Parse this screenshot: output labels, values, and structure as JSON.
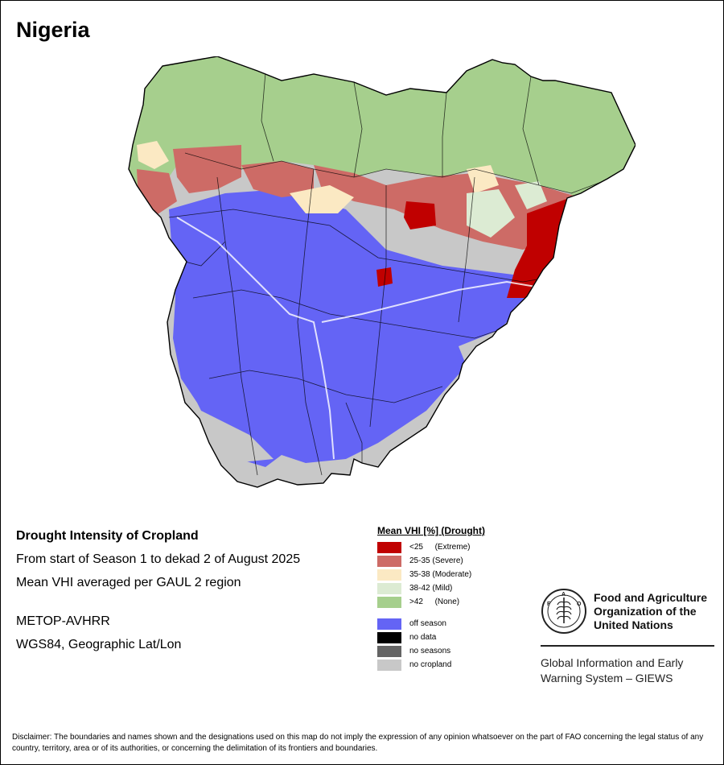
{
  "country": "Nigeria",
  "info": {
    "title": "Drought Intensity of Cropland",
    "period": "From start of Season 1 to dekad 2 of August 2025",
    "method": "Mean VHI averaged per GAUL 2 region",
    "sensor": "METOP-AVHRR",
    "projection": "WGS84, Geographic Lat/Lon"
  },
  "legend": {
    "title": "Mean VHI [%] (Drought)",
    "vhi_classes": [
      {
        "code": "<25",
        "label": "(Extreme)",
        "color": "#c00000"
      },
      {
        "code": "25-35",
        "label": "(Severe)",
        "color": "#cd6b66"
      },
      {
        "code": "35-38",
        "label": "(Moderate)",
        "color": "#fbe9c3"
      },
      {
        "code": "38-42",
        "label": "(Mild)",
        "color": "#dcebd3"
      },
      {
        "code": ">42",
        "label": "(None)",
        "color": "#a6cf8d"
      }
    ],
    "other_classes": [
      {
        "label": "off season",
        "color": "#6464f5"
      },
      {
        "label": "no data",
        "color": "#000000"
      },
      {
        "label": "no seasons",
        "color": "#646464"
      },
      {
        "label": "no cropland",
        "color": "#c8c8c8"
      }
    ]
  },
  "fao": {
    "name_line1": "Food and Agriculture",
    "name_line2": "Organization of the",
    "name_line3": "United Nations",
    "giews_line1": "Global Information and Early",
    "giews_line2": "Warning System – GIEWS",
    "logo_text": "FIAT PANIS"
  },
  "disclaimer": "Disclaimer: The boundaries and names shown and the designations used on this map do not imply the expression of any opinion whatsoever on the part of FAO concerning the legal status of any country, territory, area or of its authorities, or concerning the delimitation of its frontiers and boundaries."
}
